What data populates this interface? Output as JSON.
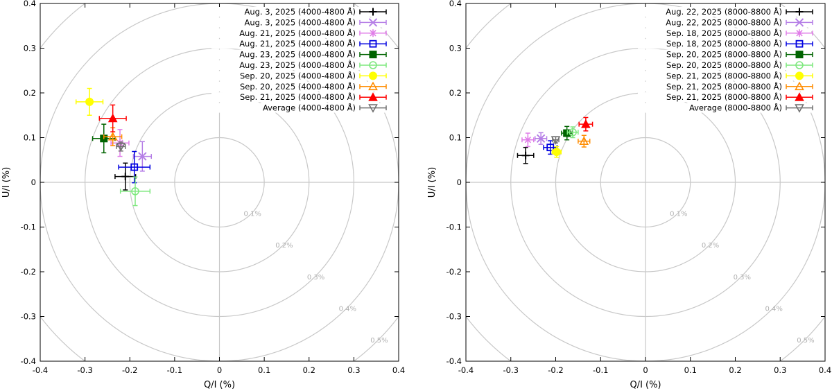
{
  "chart_data": [
    {
      "type": "scatter",
      "title": "",
      "xlabel": "Q/I (%)",
      "ylabel": "U/I (%)",
      "xlim": [
        -0.4,
        0.4
      ],
      "ylim": [
        -0.4,
        0.4
      ],
      "xticks": [
        "-0.4",
        "-0.3",
        "-0.2",
        "-0.1",
        "0",
        "0.1",
        "0.2",
        "0.3",
        "0.4"
      ],
      "yticks": [
        "-0.4",
        "-0.3",
        "-0.2",
        "-0.1",
        "0",
        "0.1",
        "0.2",
        "0.3",
        "0.4"
      ],
      "circles": [
        {
          "r": 0.1,
          "label": "0.1%"
        },
        {
          "r": 0.2,
          "label": "0.2%"
        },
        {
          "r": 0.3,
          "label": "0.3%"
        },
        {
          "r": 0.4,
          "label": "0.4%"
        },
        {
          "r": 0.5,
          "label": "0.5%"
        }
      ],
      "legend_position": "top-right",
      "series": [
        {
          "name": "Aug. 3, 2025 (4000-4800 Å)",
          "marker": "plus",
          "color": "#000000",
          "x": -0.21,
          "y": 0.013,
          "xerr": 0.023,
          "yerr": 0.03
        },
        {
          "name": "Aug. 3, 2025 (4000-4800 Å)",
          "marker": "cross",
          "color": "#b57ee6",
          "x": -0.172,
          "y": 0.058,
          "xerr": 0.02,
          "yerr": 0.033
        },
        {
          "name": "Aug. 21, 2025 (4000-4800 Å)",
          "marker": "star",
          "color": "#e07de8",
          "x": -0.222,
          "y": 0.088,
          "xerr": 0.02,
          "yerr": 0.03
        },
        {
          "name": "Aug. 21, 2025 (4000-4800 Å)",
          "marker": "square-open",
          "color": "#0000e0",
          "x": -0.19,
          "y": 0.034,
          "xerr": 0.035,
          "yerr": 0.035
        },
        {
          "name": "Aug. 23, 2025 (4000-4800 Å)",
          "marker": "square",
          "color": "#006400",
          "x": -0.258,
          "y": 0.098,
          "xerr": 0.025,
          "yerr": 0.032
        },
        {
          "name": "Aug. 23, 2025 (4000-4800 Å)",
          "marker": "circle-open",
          "color": "#7ee87e",
          "x": -0.188,
          "y": -0.02,
          "xerr": 0.033,
          "yerr": 0.032
        },
        {
          "name": "Sep. 20, 2025 (4000-4800 Å)",
          "marker": "circle",
          "color": "#ffff00",
          "x": -0.29,
          "y": 0.18,
          "xerr": 0.03,
          "yerr": 0.03
        },
        {
          "name": "Sep. 20, 2025 (4000-4800 Å)",
          "marker": "triangle-open",
          "color": "#ff8c00",
          "x": -0.238,
          "y": 0.102,
          "xerr": 0.02,
          "yerr": 0.02
        },
        {
          "name": "Sep. 21, 2025 (4000-4800 Å)",
          "marker": "triangle",
          "color": "#ff0000",
          "x": -0.238,
          "y": 0.143,
          "xerr": 0.03,
          "yerr": 0.03
        },
        {
          "name": "Average (4000-4800 Å)",
          "marker": "triangle-down-open",
          "color": "#707070",
          "x": -0.22,
          "y": 0.08,
          "xerr": 0.01,
          "yerr": 0.01
        }
      ]
    },
    {
      "type": "scatter",
      "title": "",
      "xlabel": "Q/I (%)",
      "ylabel": "U/I (%)",
      "xlim": [
        -0.4,
        0.4
      ],
      "ylim": [
        -0.4,
        0.4
      ],
      "xticks": [
        "-0.4",
        "-0.3",
        "-0.2",
        "-0.1",
        "0",
        "0.1",
        "0.2",
        "0.3",
        "0.4"
      ],
      "yticks": [
        "-0.4",
        "-0.3",
        "-0.2",
        "-0.1",
        "0",
        "0.1",
        "0.2",
        "0.3",
        "0.4"
      ],
      "circles": [
        {
          "r": 0.1,
          "label": "0.1%"
        },
        {
          "r": 0.2,
          "label": "0.2%"
        },
        {
          "r": 0.3,
          "label": "0.3%"
        },
        {
          "r": 0.4,
          "label": "0.4%"
        },
        {
          "r": 0.5,
          "label": "0.5%"
        }
      ],
      "legend_position": "top-right",
      "series": [
        {
          "name": "Aug. 22, 2025 (8000-8800 Å)",
          "marker": "plus",
          "color": "#000000",
          "x": -0.267,
          "y": 0.06,
          "xerr": 0.018,
          "yerr": 0.018
        },
        {
          "name": "Aug. 22, 2025 (8000-8800 Å)",
          "marker": "cross",
          "color": "#b57ee6",
          "x": -0.233,
          "y": 0.098,
          "xerr": 0.013,
          "yerr": 0.013
        },
        {
          "name": "Sep. 18, 2025 (8000-8800 Å)",
          "marker": "star",
          "color": "#e07de8",
          "x": -0.262,
          "y": 0.095,
          "xerr": 0.013,
          "yerr": 0.015
        },
        {
          "name": "Sep. 18, 2025 (8000-8800 Å)",
          "marker": "square-open",
          "color": "#0000e0",
          "x": -0.212,
          "y": 0.078,
          "xerr": 0.015,
          "yerr": 0.015
        },
        {
          "name": "Sep. 20, 2025 (8000-8800 Å)",
          "marker": "square",
          "color": "#006400",
          "x": -0.175,
          "y": 0.11,
          "xerr": 0.012,
          "yerr": 0.015
        },
        {
          "name": "Sep. 20, 2025 (8000-8800 Å)",
          "marker": "circle-open",
          "color": "#7ee87e",
          "x": -0.162,
          "y": 0.112,
          "xerr": 0.012,
          "yerr": 0.012
        },
        {
          "name": "Sep. 21, 2025 (8000-8800 Å)",
          "marker": "circle",
          "color": "#ffff00",
          "x": -0.198,
          "y": 0.068,
          "xerr": 0.01,
          "yerr": 0.012
        },
        {
          "name": "Sep. 21, 2025 (8000-8800 Å)",
          "marker": "triangle-open",
          "color": "#ff8c00",
          "x": -0.137,
          "y": 0.092,
          "xerr": 0.013,
          "yerr": 0.013
        },
        {
          "name": "Sep. 21, 2025 (8000-8800 Å)",
          "marker": "triangle",
          "color": "#ff0000",
          "x": -0.133,
          "y": 0.13,
          "xerr": 0.015,
          "yerr": 0.015
        },
        {
          "name": "Average (8000-8800 Å)",
          "marker": "triangle-down-open",
          "color": "#707070",
          "x": -0.2,
          "y": 0.095,
          "xerr": 0.007,
          "yerr": 0.007
        }
      ]
    }
  ]
}
